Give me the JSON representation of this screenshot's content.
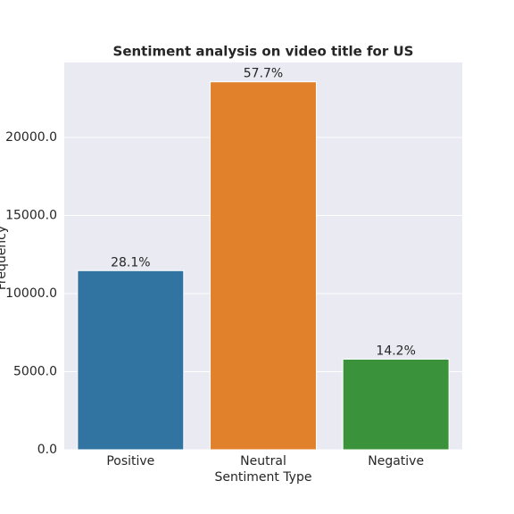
{
  "chart_data": {
    "type": "bar",
    "title": "Sentiment analysis on video title for US",
    "x_label": "Sentiment Type",
    "y_label": "Frequency",
    "categories": [
      "Positive",
      "Neutral",
      "Negative"
    ],
    "values": [
      11470,
      23560,
      5800
    ],
    "value_labels": [
      "28.1%",
      "57.7%",
      "14.2%"
    ],
    "colors": [
      "#3274a1",
      "#e1812c",
      "#3a923a"
    ],
    "ylim": [
      0,
      24800
    ],
    "yticks": [
      {
        "value": 0,
        "label": "0.0"
      },
      {
        "value": 5000,
        "label": "5000.0"
      },
      {
        "value": 10000,
        "label": "10000.0"
      },
      {
        "value": 15000,
        "label": "15000.0"
      },
      {
        "value": 20000,
        "label": "20000.0"
      }
    ],
    "grid": true
  }
}
